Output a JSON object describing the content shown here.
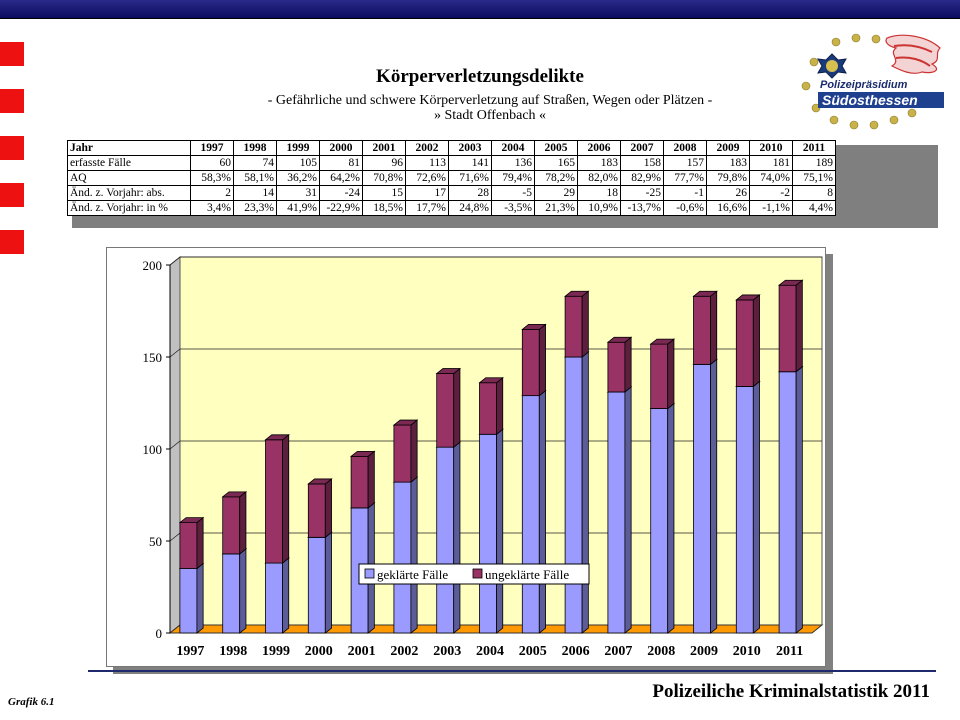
{
  "header": {
    "title": "Körperverletzungsdelikte",
    "subtitle": "-  Gefährliche und schwere Körperverletzung auf Straßen, Wegen oder Plätzen  -",
    "subtitle2": "» Stadt Offenbach «"
  },
  "logo": {
    "line1": "Polizeipräsidium",
    "line2": "Südosthessen"
  },
  "table": {
    "header": [
      "Jahr",
      "1997",
      "1998",
      "1999",
      "2000",
      "2001",
      "2002",
      "2003",
      "2004",
      "2005",
      "2006",
      "2007",
      "2008",
      "2009",
      "2010",
      "2011"
    ],
    "rows": [
      {
        "label": "erfasste Fälle",
        "values": [
          "60",
          "74",
          "105",
          "81",
          "96",
          "113",
          "141",
          "136",
          "165",
          "183",
          "158",
          "157",
          "183",
          "181",
          "189"
        ]
      },
      {
        "label": "AQ",
        "values": [
          "58,3%",
          "58,1%",
          "36,2%",
          "64,2%",
          "70,8%",
          "72,6%",
          "71,6%",
          "79,4%",
          "78,2%",
          "82,0%",
          "82,9%",
          "77,7%",
          "79,8%",
          "74,0%",
          "75,1%"
        ]
      },
      {
        "label": "Änd. z. Vorjahr: abs.",
        "values": [
          "2",
          "14",
          "31",
          "-24",
          "15",
          "17",
          "28",
          "-5",
          "29",
          "18",
          "-25",
          "-1",
          "26",
          "-2",
          "8"
        ]
      },
      {
        "label": "Änd. z. Vorjahr: in %",
        "values": [
          "3,4%",
          "23,3%",
          "41,9%",
          "-22,9%",
          "18,5%",
          "17,7%",
          "24,8%",
          "-3,5%",
          "21,3%",
          "10,9%",
          "-13,7%",
          "-0,6%",
          "16,6%",
          "-1,1%",
          "4,4%"
        ]
      }
    ]
  },
  "chart_data": {
    "type": "bar",
    "stacked": true,
    "categories": [
      "1997",
      "1998",
      "1999",
      "2000",
      "2001",
      "2002",
      "2003",
      "2004",
      "2005",
      "2006",
      "2007",
      "2008",
      "2009",
      "2010",
      "2011"
    ],
    "series": [
      {
        "name": "geklärte Fälle",
        "values": [
          35,
          43,
          38,
          52,
          68,
          82,
          101,
          108,
          129,
          150,
          131,
          122,
          146,
          134,
          142
        ]
      },
      {
        "name": "ungeklärte Fälle",
        "values": [
          25,
          31,
          67,
          29,
          28,
          31,
          40,
          28,
          36,
          33,
          27,
          35,
          37,
          47,
          47
        ]
      }
    ],
    "yticks": [
      "0",
      "50",
      "100",
      "150",
      "200"
    ],
    "ylim": [
      0,
      200
    ],
    "legend_position": "bottom-center inside plot",
    "colors": {
      "solved": "#9a9aff",
      "unsolved": "#993366",
      "wall": "#ffffc0",
      "floor": "#ff9900"
    }
  },
  "footer": {
    "title": "Polizeiliche Kriminalstatistik 2011",
    "grafik": "Grafik  6.1"
  }
}
